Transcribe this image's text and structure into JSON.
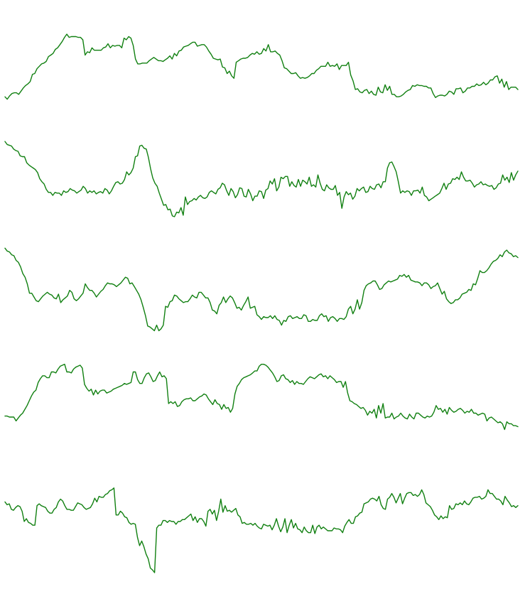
{
  "chart_data": {
    "type": "line",
    "title": "",
    "xlabel": "",
    "ylabel": "",
    "grid": false,
    "axes_visible": false,
    "legend": "none",
    "line_color": "#118011",
    "panels": [
      {
        "ylim": [
          0,
          100
        ],
        "values": [
          6,
          3,
          7,
          10,
          11,
          11,
          9,
          13,
          17,
          20,
          22,
          25,
          34,
          35,
          41,
          44,
          47,
          48,
          50,
          56,
          58,
          60,
          65,
          67,
          71,
          75,
          80,
          84,
          80,
          81,
          81,
          81,
          80,
          80,
          77,
          58,
          62,
          61,
          67,
          64,
          64,
          64,
          64,
          67,
          68,
          72,
          67,
          70,
          69,
          70,
          70,
          67,
          79,
          77,
          81,
          79,
          70,
          53,
          47,
          47,
          48,
          48,
          48,
          51,
          53,
          55,
          53,
          51,
          51,
          50,
          52,
          54,
          57,
          53,
          60,
          57,
          63,
          64,
          68,
          69,
          70,
          72,
          74,
          74,
          69,
          70,
          71,
          71,
          68,
          63,
          59,
          54,
          53,
          52,
          53,
          43,
          42,
          35,
          38,
          32,
          29,
          49,
          51,
          53,
          54,
          54,
          55,
          58,
          60,
          59,
          62,
          59,
          60,
          66,
          63,
          71,
          62,
          62,
          63,
          60,
          58,
          51,
          42,
          41,
          38,
          35,
          35,
          36,
          32,
          29,
          30,
          29,
          30,
          32,
          35,
          35,
          39,
          41,
          44,
          44,
          44,
          49,
          44,
          45,
          44,
          47,
          40,
          45,
          45,
          45,
          49,
          33,
          26,
          15,
          16,
          12,
          11,
          14,
          15,
          10,
          13,
          9,
          8,
          18,
          12,
          11,
          21,
          14,
          19,
          9,
          9,
          6,
          6,
          7,
          9,
          12,
          14,
          15,
          20,
          19,
          21,
          20,
          20,
          19,
          19,
          17,
          17,
          10,
          5,
          7,
          8,
          8,
          7,
          9,
          13,
          12,
          9,
          16,
          16,
          17,
          11,
          13,
          17,
          17,
          19,
          19,
          22,
          20,
          21,
          24,
          21,
          23,
          27,
          27,
          31,
          32,
          23,
          28,
          18,
          25,
          15,
          18,
          18,
          18,
          15
        ]
      },
      {
        "ylim": [
          0,
          100
        ],
        "values": [
          99,
          95,
          94,
          93,
          89,
          87,
          86,
          80,
          79,
          79,
          71,
          68,
          66,
          64,
          62,
          58,
          50,
          46,
          43,
          36,
          32,
          32,
          28,
          32,
          31,
          31,
          28,
          34,
          32,
          33,
          37,
          35,
          34,
          31,
          33,
          35,
          40,
          37,
          31,
          34,
          32,
          34,
          30,
          32,
          33,
          31,
          37,
          35,
          30,
          34,
          40,
          45,
          46,
          43,
          44,
          49,
          59,
          55,
          58,
          64,
          79,
          80,
          93,
          94,
          90,
          89,
          78,
          63,
          51,
          44,
          40,
          31,
          23,
          15,
          16,
          9,
          10,
          1,
          0,
          6,
          5,
          12,
          2,
          26,
          16,
          20,
          21,
          24,
          22,
          26,
          28,
          25,
          24,
          26,
          32,
          34,
          32,
          30,
          36,
          38,
          44,
          42,
          34,
          28,
          37,
          33,
          25,
          29,
          38,
          37,
          27,
          26,
          36,
          30,
          21,
          27,
          27,
          34,
          33,
          24,
          35,
          37,
          47,
          43,
          50,
          34,
          39,
          52,
          50,
          53,
          53,
          40,
          46,
          41,
          39,
          49,
          40,
          48,
          46,
          43,
          52,
          40,
          42,
          39,
          55,
          44,
          36,
          34,
          42,
          38,
          36,
          36,
          41,
          28,
          32,
          11,
          26,
          33,
          29,
          31,
          23,
          27,
          37,
          34,
          37,
          39,
          32,
          33,
          40,
          37,
          36,
          42,
          43,
          38,
          46,
          46,
          64,
          71,
          72,
          66,
          59,
          46,
          31,
          34,
          32,
          34,
          33,
          28,
          34,
          34,
          35,
          31,
          39,
          28,
          26,
          21,
          23,
          25,
          27,
          29,
          31,
          37,
          44,
          36,
          43,
          44,
          50,
          49,
          52,
          49,
          59,
          52,
          47,
          47,
          48,
          44,
          39,
          42,
          43,
          46,
          42,
          43,
          41,
          40,
          41,
          36,
          38,
          43,
          44,
          55,
          48,
          52,
          45,
          58,
          48,
          55,
          60
        ]
      },
      {
        "ylim": [
          0,
          100
        ],
        "values": [
          99,
          96,
          95,
          92,
          91,
          86,
          84,
          79,
          72,
          68,
          61,
          51,
          51,
          47,
          43,
          42,
          45,
          48,
          50,
          52,
          50,
          49,
          46,
          45,
          50,
          41,
          44,
          46,
          48,
          54,
          52,
          45,
          43,
          45,
          48,
          51,
          61,
          57,
          54,
          54,
          51,
          47,
          50,
          53,
          55,
          59,
          62,
          61,
          61,
          60,
          58,
          60,
          62,
          65,
          68,
          67,
          61,
          62,
          58,
          54,
          50,
          44,
          36,
          27,
          16,
          15,
          13,
          11,
          17,
          11,
          13,
          17,
          37,
          36,
          42,
          43,
          49,
          48,
          45,
          43,
          41,
          42,
          42,
          45,
          49,
          47,
          46,
          52,
          52,
          49,
          46,
          46,
          41,
          33,
          32,
          29,
          38,
          41,
          47,
          41,
          45,
          48,
          46,
          41,
          35,
          36,
          33,
          38,
          42,
          47,
          35,
          36,
          37,
          28,
          26,
          23,
          26,
          25,
          25,
          27,
          24,
          27,
          23,
          22,
          17,
          22,
          21,
          26,
          27,
          24,
          25,
          26,
          24,
          24,
          28,
          27,
          21,
          21,
          23,
          22,
          22,
          27,
          29,
          26,
          27,
          21,
          25,
          26,
          24,
          21,
          24,
          24,
          23,
          26,
          34,
          37,
          29,
          34,
          44,
          34,
          41,
          54,
          59,
          61,
          62,
          64,
          64,
          60,
          55,
          56,
          60,
          62,
          64,
          63,
          64,
          65,
          66,
          70,
          69,
          71,
          68,
          70,
          65,
          64,
          63,
          63,
          62,
          59,
          62,
          62,
          60,
          56,
          58,
          59,
          62,
          56,
          50,
          53,
          45,
          42,
          40,
          41,
          44,
          44,
          46,
          50,
          51,
          52,
          55,
          54,
          61,
          60,
          67,
          75,
          73,
          73,
          75,
          78,
          82,
          85,
          86,
          88,
          92,
          90,
          95,
          97,
          94,
          93,
          90,
          91,
          89
        ]
      },
      {
        "ylim": [
          0,
          100
        ],
        "values": [
          44,
          44,
          43,
          43,
          43,
          39,
          42,
          45,
          47,
          51,
          55,
          60,
          65,
          69,
          71,
          79,
          83,
          86,
          86,
          84,
          84,
          90,
          90,
          89,
          93,
          96,
          97,
          98,
          90,
          90,
          89,
          93,
          95,
          96,
          97,
          94,
          77,
          73,
          70,
          72,
          66,
          71,
          67,
          70,
          71,
          71,
          68,
          69,
          70,
          72,
          73,
          74,
          75,
          76,
          78,
          77,
          78,
          79,
          90,
          90,
          82,
          78,
          78,
          84,
          88,
          89,
          85,
          80,
          81,
          86,
          90,
          85,
          86,
          83,
          57,
          59,
          57,
          59,
          54,
          55,
          59,
          61,
          62,
          62,
          63,
          60,
          60,
          62,
          64,
          65,
          67,
          66,
          62,
          59,
          56,
          61,
          57,
          56,
          51,
          56,
          52,
          53,
          48,
          52,
          67,
          75,
          78,
          82,
          84,
          85,
          86,
          87,
          89,
          91,
          91,
          96,
          98,
          98,
          97,
          95,
          92,
          89,
          85,
          80,
          81,
          86,
          87,
          83,
          82,
          79,
          81,
          77,
          80,
          78,
          78,
          77,
          80,
          83,
          85,
          84,
          83,
          85,
          87,
          88,
          85,
          86,
          83,
          86,
          84,
          82,
          79,
          80,
          80,
          74,
          80,
          68,
          60,
          59,
          57,
          56,
          54,
          52,
          53,
          50,
          45,
          49,
          47,
          51,
          42,
          55,
          47,
          57,
          42,
          43,
          43,
          47,
          41,
          43,
          44,
          47,
          44,
          42,
          41,
          46,
          43,
          41,
          47,
          47,
          45,
          43,
          42,
          44,
          43,
          44,
          48,
          55,
          51,
          52,
          48,
          51,
          46,
          53,
          50,
          48,
          49,
          51,
          52,
          50,
          47,
          49,
          48,
          51,
          47,
          47,
          45,
          46,
          47,
          46,
          39,
          42,
          43,
          41,
          39,
          37,
          38,
          36,
          30,
          38,
          36,
          36,
          34,
          34,
          33
        ]
      },
      {
        "ylim": [
          0,
          100
        ],
        "values": [
          76,
          73,
          74,
          68,
          67,
          70,
          72,
          71,
          66,
          55,
          58,
          54,
          53,
          51,
          51,
          72,
          74,
          72,
          71,
          70,
          66,
          64,
          64,
          68,
          70,
          76,
          79,
          77,
          72,
          68,
          68,
          67,
          67,
          71,
          75,
          74,
          73,
          70,
          68,
          69,
          70,
          74,
          80,
          76,
          82,
          81,
          81,
          84,
          85,
          88,
          89,
          91,
          62,
          62,
          66,
          64,
          60,
          59,
          54,
          52,
          53,
          52,
          38,
          29,
          34,
          28,
          20,
          15,
          5,
          3,
          0,
          48,
          51,
          51,
          56,
          56,
          54,
          56,
          55,
          55,
          52,
          55,
          55,
          57,
          57,
          59,
          61,
          63,
          56,
          60,
          54,
          58,
          58,
          55,
          50,
          66,
          68,
          63,
          67,
          56,
          66,
          79,
          65,
          72,
          66,
          67,
          65,
          67,
          69,
          62,
          60,
          53,
          54,
          52,
          52,
          53,
          51,
          53,
          50,
          48,
          47,
          52,
          51,
          50,
          51,
          46,
          51,
          58,
          50,
          44,
          49,
          58,
          43,
          51,
          57,
          48,
          53,
          47,
          46,
          43,
          49,
          45,
          43,
          43,
          51,
          42,
          49,
          51,
          47,
          49,
          47,
          45,
          45,
          45,
          48,
          47,
          47,
          46,
          43,
          50,
          54,
          57,
          53,
          53,
          60,
          61,
          64,
          65,
          74,
          75,
          76,
          79,
          80,
          79,
          77,
          82,
          73,
          69,
          68,
          79,
          81,
          85,
          81,
          75,
          80,
          85,
          74,
          80,
          85,
          86,
          86,
          83,
          84,
          82,
          84,
          89,
          84,
          75,
          73,
          71,
          67,
          62,
          60,
          57,
          61,
          58,
          60,
          59,
          72,
          68,
          69,
          74,
          73,
          75,
          73,
          77,
          74,
          73,
          76,
          80,
          81,
          81,
          82,
          79,
          80,
          82,
          89,
          85,
          85,
          82,
          79,
          79,
          77,
          73,
          82,
          78,
          75,
          71,
          72,
          70,
          72
        ]
      }
    ]
  }
}
